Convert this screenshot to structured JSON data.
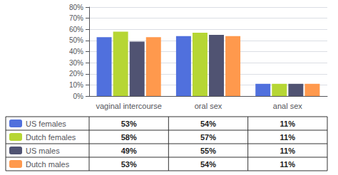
{
  "chart_data": {
    "type": "bar",
    "categories": [
      "vaginal intercourse",
      "oral sex",
      "anal sex"
    ],
    "series": [
      {
        "name": "US females",
        "values": [
          53,
          54,
          11
        ],
        "value_labels": [
          "53%",
          "54%",
          "11%"
        ]
      },
      {
        "name": "Dutch females",
        "values": [
          58,
          57,
          11
        ],
        "value_labels": [
          "58%",
          "57%",
          "11%"
        ]
      },
      {
        "name": "US males",
        "values": [
          49,
          55,
          11
        ],
        "value_labels": [
          "49%",
          "55%",
          "11%"
        ]
      },
      {
        "name": "Dutch males",
        "values": [
          53,
          54,
          11
        ],
        "value_labels": [
          "53%",
          "54%",
          "11%"
        ]
      }
    ],
    "ylim": [
      0,
      80
    ],
    "yticks": [
      {
        "value": 0,
        "label": "0%"
      },
      {
        "value": 10,
        "label": "10%"
      },
      {
        "value": 20,
        "label": "20%"
      },
      {
        "value": 30,
        "label": "30%"
      },
      {
        "value": 40,
        "label": "40%"
      },
      {
        "value": 50,
        "label": "50%"
      },
      {
        "value": 60,
        "label": "60%"
      },
      {
        "value": 70,
        "label": "70%"
      },
      {
        "value": 80,
        "label": "80%"
      }
    ],
    "grid": true,
    "legend": "lower left"
  }
}
